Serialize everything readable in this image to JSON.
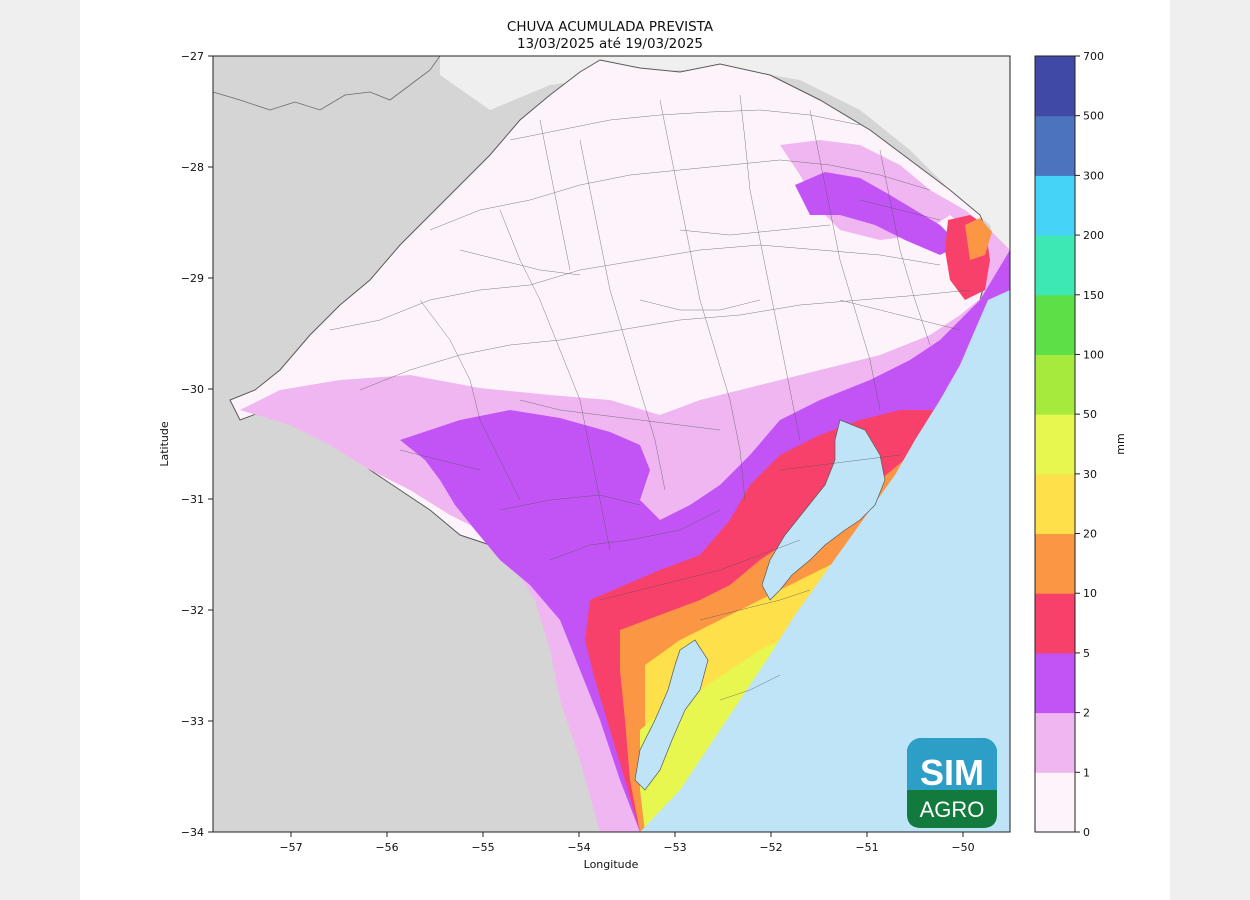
{
  "title": {
    "line1": "CHUVA ACUMULADA PREVISTA",
    "line2": "13/03/2025 até 19/03/2025"
  },
  "map": {
    "xlabel": "Longitude",
    "ylabel": "Latitude",
    "xlim": [
      -57.8,
      -49.5
    ],
    "ylim": [
      -34,
      -27
    ],
    "xticks": [
      "−57",
      "−56",
      "−55",
      "−54",
      "−53",
      "−52",
      "−51",
      "−50"
    ],
    "yticks": [
      "−27",
      "−28",
      "−29",
      "−30",
      "−31",
      "−32",
      "−33",
      "−34"
    ]
  },
  "colorbar": {
    "unit_label": "mm",
    "levels": [
      "0",
      "1",
      "2",
      "5",
      "10",
      "20",
      "30",
      "50",
      "100",
      "150",
      "200",
      "300",
      "500",
      "700"
    ],
    "colors": [
      "#fdf4fb",
      "#efb6f1",
      "#c254f5",
      "#f7416a",
      "#fb9645",
      "#fde04a",
      "#e7f750",
      "#a6ea3e",
      "#5ddf48",
      "#3ee8b4",
      "#45d3f8",
      "#4b73be",
      "#4049a6"
    ]
  },
  "logo": {
    "top_text": "SIM",
    "bottom_text": "AGRO"
  },
  "colors": {
    "ocean": "#bfe3f7",
    "land_outside": "#d5d5d5",
    "land_north": "#efefef",
    "border": "#3a3a3a"
  }
}
